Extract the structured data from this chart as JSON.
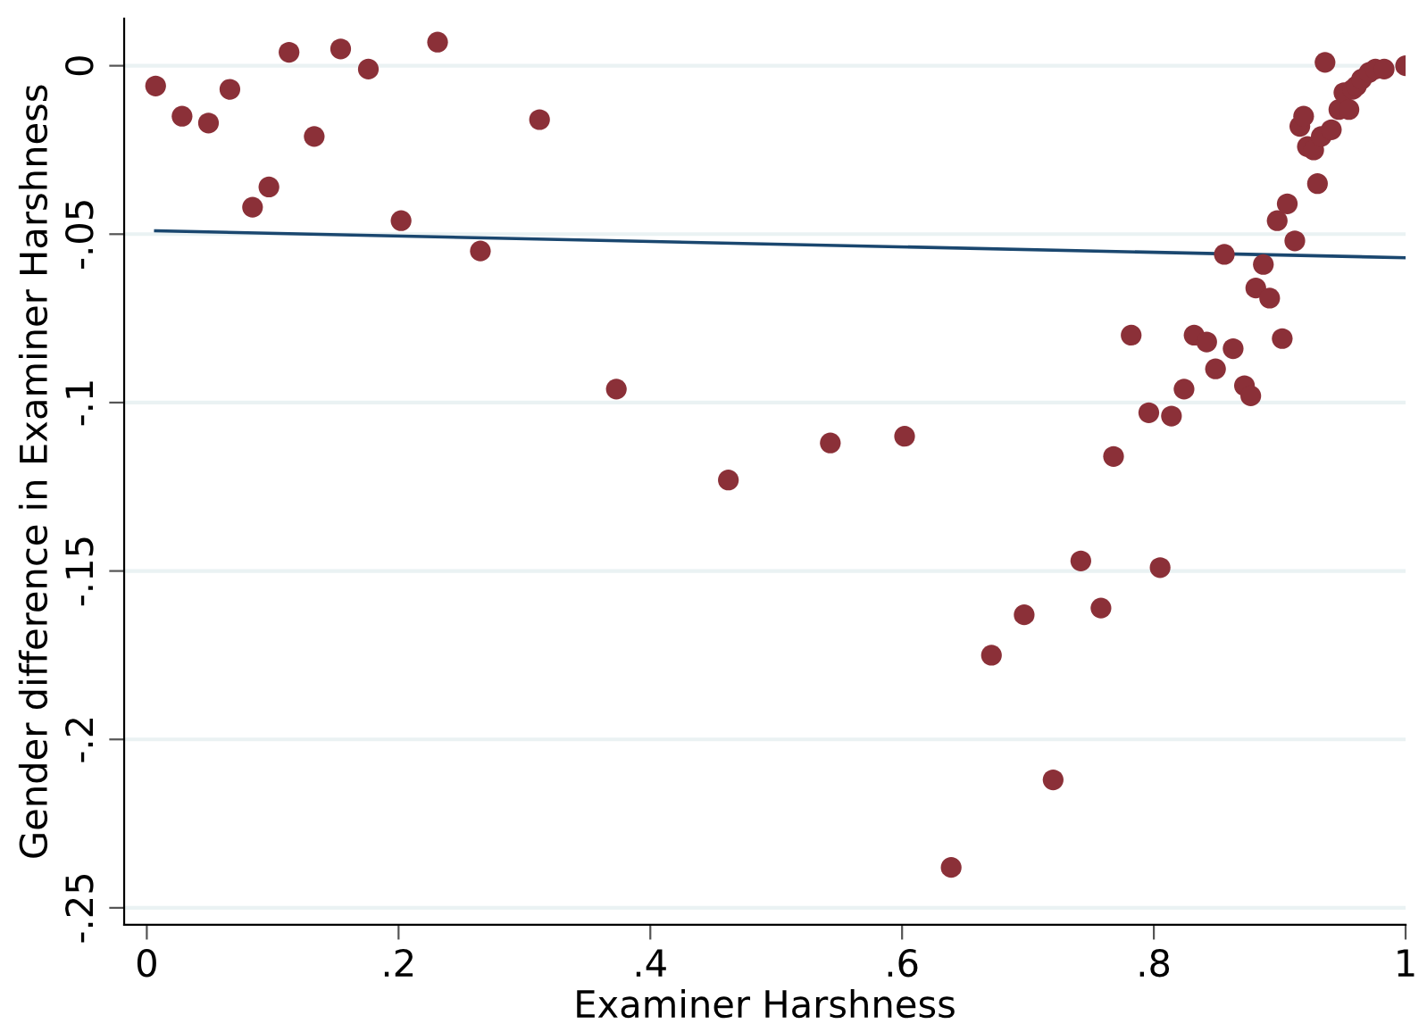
{
  "chart_data": {
    "type": "scatter",
    "xlabel": "Examiner Harshness",
    "ylabel": "Gender difference in Examiner Harshness",
    "xlim": [
      -0.018,
      1.0
    ],
    "ylim": [
      -0.255,
      0.014
    ],
    "xticks": [
      {
        "value": 0,
        "label": "0"
      },
      {
        "value": 0.2,
        "label": ".2"
      },
      {
        "value": 0.4,
        "label": ".4"
      },
      {
        "value": 0.6,
        "label": ".6"
      },
      {
        "value": 0.8,
        "label": ".8"
      },
      {
        "value": 1,
        "label": "1"
      }
    ],
    "yticks": [
      {
        "value": -0.25,
        "label": "-.25"
      },
      {
        "value": -0.2,
        "label": "-.2"
      },
      {
        "value": -0.15,
        "label": "-.15"
      },
      {
        "value": -0.1,
        "label": "-.1"
      },
      {
        "value": -0.05,
        "label": "-.05"
      },
      {
        "value": 0,
        "label": "0"
      }
    ],
    "grid": "y",
    "series": [
      {
        "color": "#8b3038",
        "marker": "circle",
        "x": [
          0.007,
          0.028,
          0.049,
          0.066,
          0.084,
          0.097,
          0.113,
          0.133,
          0.154,
          0.176,
          0.202,
          0.231,
          0.265,
          0.312,
          0.373,
          0.462,
          0.543,
          0.602,
          0.639,
          0.671,
          0.697,
          0.72,
          0.742,
          0.758,
          0.768,
          0.782,
          0.796,
          0.805,
          0.814,
          0.824,
          0.832,
          0.842,
          0.849,
          0.856,
          0.863,
          0.872,
          0.877,
          0.881,
          0.887,
          0.892,
          0.898,
          0.902,
          0.906,
          0.912,
          0.916,
          0.919,
          0.922,
          0.927,
          0.93,
          0.933,
          0.936,
          0.941,
          0.947,
          0.951,
          0.955,
          0.958,
          0.961,
          0.965,
          0.971,
          0.976,
          0.983,
          1.0
        ],
        "values": [
          -0.006,
          -0.015,
          -0.017,
          -0.007,
          -0.042,
          -0.036,
          0.004,
          -0.021,
          0.005,
          -0.001,
          -0.046,
          0.007,
          -0.055,
          -0.016,
          -0.096,
          -0.123,
          -0.112,
          -0.11,
          -0.238,
          -0.175,
          -0.163,
          -0.212,
          -0.147,
          -0.161,
          -0.116,
          -0.08,
          -0.103,
          -0.149,
          -0.104,
          -0.096,
          -0.08,
          -0.082,
          -0.09,
          -0.056,
          -0.084,
          -0.095,
          -0.098,
          -0.066,
          -0.059,
          -0.069,
          -0.046,
          -0.081,
          -0.041,
          -0.052,
          -0.018,
          -0.015,
          -0.024,
          -0.025,
          -0.035,
          -0.021,
          0.001,
          -0.019,
          -0.013,
          -0.008,
          -0.013,
          -0.007,
          -0.006,
          -0.004,
          -0.002,
          -0.001,
          -0.001,
          0.0
        ]
      },
      {
        "type": "line",
        "marker": "none",
        "color": "#1a476f",
        "x": [
          0.007,
          1.0
        ],
        "values": [
          -0.049,
          -0.057
        ]
      }
    ]
  }
}
